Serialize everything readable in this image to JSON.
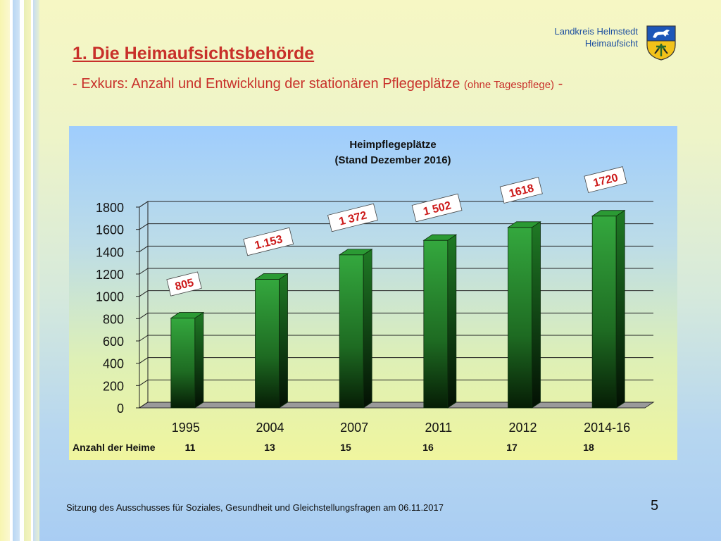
{
  "header": {
    "org": "Landkreis Helmstedt",
    "dept": "Heimaufsicht",
    "title": "1.   Die Heimaufsichtsbehörde",
    "subtitle_main": "- Exkurs: Anzahl und Entwicklung der stationären Pflegeplätze",
    "subtitle_small": "(ohne Tagespflege)",
    "subtitle_end": "-"
  },
  "footer": {
    "text": "Sitzung des Ausschusses für Soziales, Gesundheit und Gleichstellungsfragen am 06.11.2017",
    "page": "5"
  },
  "colors": {
    "bar_top": "#2fa23a",
    "bar_bottom": "#0a2a08",
    "label_text": "#cc1a1a",
    "title_red": "#c8302a"
  },
  "chart_data": {
    "type": "bar",
    "title": "Heimpflegeplätze",
    "subtitle": "(Stand Dezember 2016)",
    "categories": [
      "1995",
      "2004",
      "2007",
      "2011",
      "2012",
      "2014-16"
    ],
    "values": [
      805,
      1153,
      1372,
      1502,
      1618,
      1720
    ],
    "data_labels": [
      "805",
      "1.153",
      "1 372",
      "1 502",
      "1618",
      "1720"
    ],
    "ylim": [
      0,
      1800
    ],
    "yticks": [
      "0",
      "200",
      "400",
      "600",
      "800",
      "1000",
      "1200",
      "1400",
      "1600",
      "1800"
    ],
    "grid": true,
    "xlabel": "",
    "ylabel": "",
    "heime_label": "Anzahl der Heime",
    "heime": [
      "11",
      "13",
      "15",
      "16",
      "17",
      "18"
    ]
  }
}
